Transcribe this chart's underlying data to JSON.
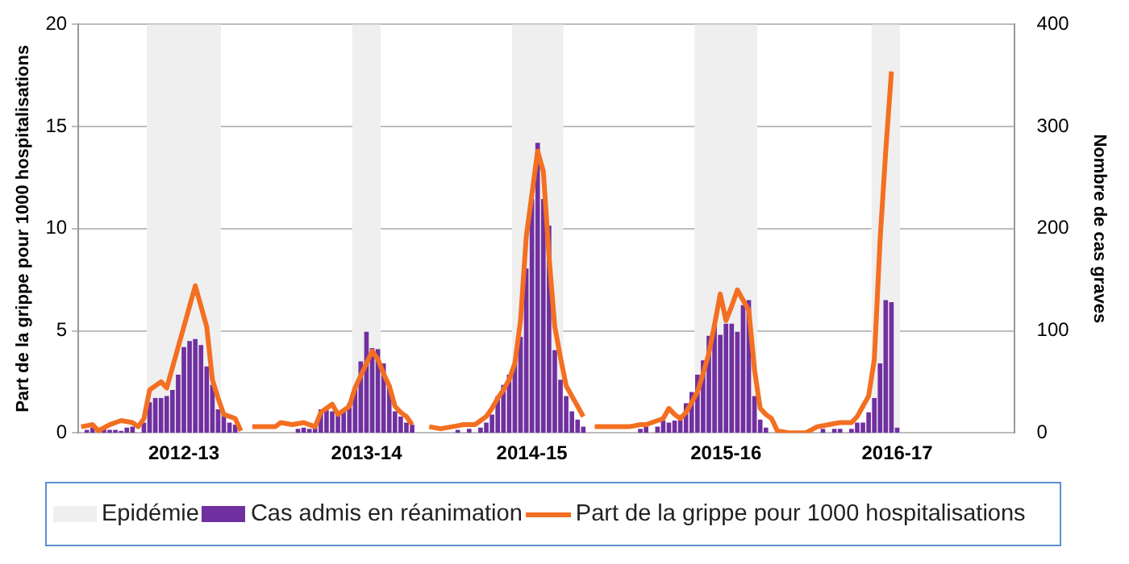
{
  "chart_data": {
    "type": "bar",
    "ylabel": "Part de la grippe pour 1000 hospitalisations",
    "y2label": "Nombre de cas graves",
    "categories": [
      null,
      null,
      null,
      null,
      null,
      null,
      null,
      null,
      null,
      null,
      null,
      null,
      null,
      null,
      null,
      null,
      null,
      null,
      "2012-13",
      null,
      null,
      null,
      null,
      null,
      null,
      null,
      null,
      null,
      null,
      null,
      null,
      null,
      null,
      null,
      null,
      null,
      null,
      null,
      null,
      null,
      null,
      null,
      null,
      null,
      null,
      null,
      null,
      null,
      null,
      null,
      "2013-14",
      null,
      null,
      null,
      null,
      null,
      null,
      null,
      null,
      null,
      null,
      null,
      null,
      null,
      null,
      null,
      null,
      null,
      null,
      null,
      null,
      null,
      null,
      null,
      null,
      null,
      null,
      null,
      null,
      "2014-15",
      null,
      null,
      null,
      null,
      null,
      null,
      null,
      null,
      null,
      null,
      null,
      null,
      null,
      null,
      null,
      null,
      null,
      null,
      null,
      null,
      null,
      null,
      null,
      null,
      null,
      null,
      null,
      null,
      null,
      null,
      null,
      null,
      null,
      "2015-16",
      null,
      null,
      null,
      null,
      null,
      null,
      null,
      null,
      null,
      null,
      null,
      null,
      null,
      null,
      null,
      null,
      null,
      null,
      null,
      null,
      null,
      null,
      null,
      null,
      null,
      null,
      null,
      null,
      null,
      "2016-17",
      null,
      null,
      null,
      null,
      null,
      null,
      null,
      null,
      null,
      null,
      null,
      null,
      null,
      null,
      null,
      null,
      null,
      null,
      null,
      null
    ],
    "ylim": [
      0,
      20
    ],
    "yticks": [
      0,
      5,
      10,
      15,
      20
    ],
    "y2lim": [
      0,
      400
    ],
    "y2ticks": [
      0,
      100,
      200,
      300,
      400
    ],
    "grid": "y",
    "legend": "bottom",
    "annotations": [
      "Epidémie"
    ],
    "series": [
      {
        "name": "Cas admis en réanimation",
        "axis": "y2",
        "color": "#7030a0",
        "values": [
          null,
          3,
          5,
          null,
          4,
          3,
          3,
          2,
          5,
          6,
          null,
          10,
          30,
          34,
          34,
          36,
          42,
          57,
          84,
          90,
          92,
          86,
          65,
          47,
          23,
          18,
          10,
          8,
          null,
          null,
          null,
          null,
          null,
          null,
          null,
          null,
          null,
          null,
          4,
          5,
          4,
          6,
          23,
          22,
          21,
          18,
          21,
          29,
          44,
          70,
          99,
          83,
          82,
          68,
          47,
          21,
          16,
          10,
          8,
          null,
          null,
          null,
          null,
          null,
          null,
          null,
          3,
          null,
          4,
          null,
          5,
          10,
          18,
          36,
          47,
          57,
          68,
          94,
          161,
          229,
          284,
          229,
          203,
          81,
          52,
          36,
          21,
          13,
          6,
          null,
          null,
          null,
          null,
          null,
          null,
          null,
          null,
          null,
          4,
          6,
          null,
          6,
          12,
          10,
          12,
          13,
          29,
          40,
          57,
          71,
          95,
          105,
          96,
          107,
          107,
          99,
          125,
          130,
          36,
          13,
          5,
          null,
          null,
          null,
          null,
          null,
          null,
          null,
          null,
          null,
          4,
          null,
          4,
          4,
          null,
          4,
          10,
          10,
          20,
          34,
          68,
          130,
          128,
          5,
          null,
          null,
          null,
          null,
          null,
          null,
          null,
          null,
          null,
          null,
          null,
          null,
          null,
          null,
          null,
          null,
          null,
          null,
          null,
          null
        ]
      },
      {
        "name": "Part de la grippe pour 1000 hospitalisations",
        "type": "line",
        "color": "#f36f21",
        "values": [
          0.3,
          0.35,
          0.4,
          0.1,
          0.25,
          0.4,
          0.5,
          0.6,
          0.55,
          0.5,
          0.3,
          0.7,
          2.1,
          2.3,
          2.5,
          2.2,
          3.2,
          4.2,
          5.2,
          6.2,
          7.2,
          6.2,
          5.2,
          2.6,
          1.7,
          0.9,
          0.8,
          0.7,
          0.1,
          null,
          0.3,
          0.3,
          0.3,
          0.3,
          0.3,
          0.5,
          0.45,
          0.4,
          0.45,
          0.5,
          0.4,
          0.3,
          1.0,
          1.2,
          1.4,
          0.9,
          1.1,
          1.3,
          2.2,
          2.8,
          3.4,
          4.0,
          3.6,
          2.9,
          2.3,
          1.3,
          1.0,
          0.8,
          0.4,
          null,
          null,
          0.3,
          0.25,
          0.2,
          0.25,
          0.3,
          0.35,
          0.4,
          0.4,
          0.4,
          0.6,
          0.8,
          1.2,
          1.7,
          2.1,
          2.6,
          3.4,
          5.5,
          9.6,
          11.7,
          13.8,
          12.8,
          8.6,
          5.2,
          3.7,
          2.3,
          1.8,
          1.3,
          0.8,
          null,
          0.3,
          0.3,
          0.3,
          0.3,
          0.3,
          0.3,
          0.3,
          0.35,
          0.4,
          0.4,
          0.5,
          0.6,
          0.7,
          1.2,
          0.9,
          0.7,
          1.0,
          1.5,
          2.0,
          2.9,
          3.9,
          5.3,
          6.8,
          5.5,
          6.2,
          7.0,
          6.5,
          6.0,
          3.1,
          1.2,
          0.9,
          0.7,
          0.1,
          0.05,
          0,
          0,
          0,
          0,
          0.15,
          0.3,
          0.35,
          0.4,
          0.45,
          0.5,
          0.5,
          0.5,
          0.8,
          1.3,
          1.8,
          3.6,
          9.4,
          13.8,
          17.7,
          null,
          null,
          null,
          null,
          null,
          null,
          null,
          null,
          null,
          null,
          null,
          null,
          null,
          null,
          null,
          null,
          null,
          null,
          null,
          null,
          null
        ]
      }
    ]
  }
}
